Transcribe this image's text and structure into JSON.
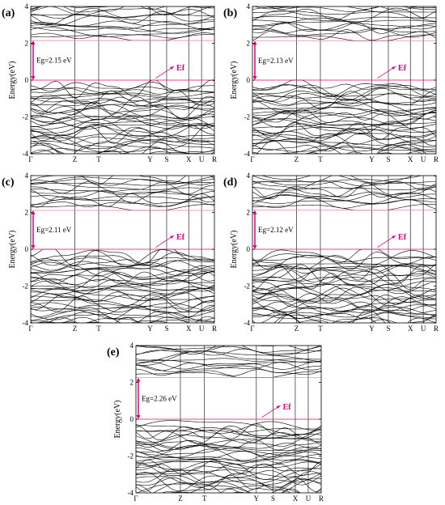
{
  "chart_data": [
    {
      "type": "line",
      "panel_label": "(a)",
      "ylabel": "Energy(eV)",
      "ylim": [
        -4,
        4
      ],
      "yticks": [
        -4,
        -2,
        0,
        2,
        4
      ],
      "kpoints": [
        "Γ",
        "Z",
        "T",
        "Y",
        "S",
        "X",
        "U",
        "R"
      ],
      "kpath": [
        0,
        0.24,
        0.37,
        0.65,
        0.74,
        0.86,
        0.93,
        1.0
      ],
      "band_gap": 2.15,
      "band_gap_label": "Eg=2.15 eV",
      "cbm": 2.15,
      "vbm": 0,
      "fermi_label": "Ef",
      "fermi_level": 0,
      "colors": {
        "bands": "#000000",
        "fermi": "#e6007e",
        "cbm_line": "#f08080"
      }
    },
    {
      "type": "line",
      "panel_label": "(b)",
      "ylabel": "Energy(eV)",
      "ylim": [
        -4,
        4
      ],
      "yticks": [
        -4,
        -2,
        0,
        2,
        4
      ],
      "kpoints": [
        "Γ",
        "Z",
        "T",
        "Y",
        "S",
        "X",
        "U",
        "R"
      ],
      "kpath": [
        0,
        0.24,
        0.37,
        0.65,
        0.74,
        0.86,
        0.93,
        1.0
      ],
      "band_gap": 2.13,
      "band_gap_label": "Eg=2.13 eV",
      "cbm": 2.13,
      "vbm": 0,
      "fermi_label": "Ef",
      "fermi_level": 0,
      "colors": {
        "bands": "#000000",
        "fermi": "#e6007e",
        "cbm_line": "#f08080"
      }
    },
    {
      "type": "line",
      "panel_label": "(c)",
      "ylabel": "Energy(eV)",
      "ylim": [
        -4,
        4
      ],
      "yticks": [
        -4,
        -2,
        0,
        2,
        4
      ],
      "kpoints": [
        "Γ",
        "Z",
        "T",
        "Y",
        "S",
        "X",
        "U",
        "R"
      ],
      "kpath": [
        0,
        0.24,
        0.37,
        0.65,
        0.74,
        0.86,
        0.93,
        1.0
      ],
      "band_gap": 2.11,
      "band_gap_label": "Eg=2.11 eV",
      "cbm": 2.11,
      "vbm": 0,
      "fermi_label": "Ef",
      "fermi_level": 0,
      "colors": {
        "bands": "#000000",
        "fermi": "#e6007e",
        "cbm_line": "#f08080"
      }
    },
    {
      "type": "line",
      "panel_label": "(d)",
      "ylabel": "Energy(eV)",
      "ylim": [
        -4,
        4
      ],
      "yticks": [
        -4,
        -2,
        0,
        2,
        4
      ],
      "kpoints": [
        "Γ",
        "Z",
        "T",
        "Y",
        "S",
        "X",
        "U",
        "R"
      ],
      "kpath": [
        0,
        0.24,
        0.37,
        0.65,
        0.74,
        0.86,
        0.93,
        1.0
      ],
      "band_gap": 2.12,
      "band_gap_label": "Eg=2.12 eV",
      "cbm": 2.12,
      "vbm": 0,
      "fermi_label": "Ef",
      "fermi_level": 0,
      "colors": {
        "bands": "#000000",
        "fermi": "#e6007e",
        "cbm_line": "#f08080"
      }
    },
    {
      "type": "line",
      "panel_label": "(e)",
      "ylabel": "Energy(eV)",
      "ylim": [
        -4,
        4
      ],
      "yticks": [
        -4,
        -2,
        0,
        2,
        4
      ],
      "kpoints": [
        "Γ",
        "Z",
        "T",
        "Y",
        "S",
        "X",
        "U",
        "R"
      ],
      "kpath": [
        0,
        0.24,
        0.37,
        0.65,
        0.74,
        0.86,
        0.93,
        1.0
      ],
      "band_gap": 2.26,
      "band_gap_label": "Eg=2.26 eV",
      "cbm": 2.26,
      "vbm": 0,
      "fermi_label": "Ef",
      "fermi_level": 0,
      "colors": {
        "bands": "#000000",
        "fermi": "#e6007e",
        "cbm_line": "#f08080"
      }
    }
  ]
}
